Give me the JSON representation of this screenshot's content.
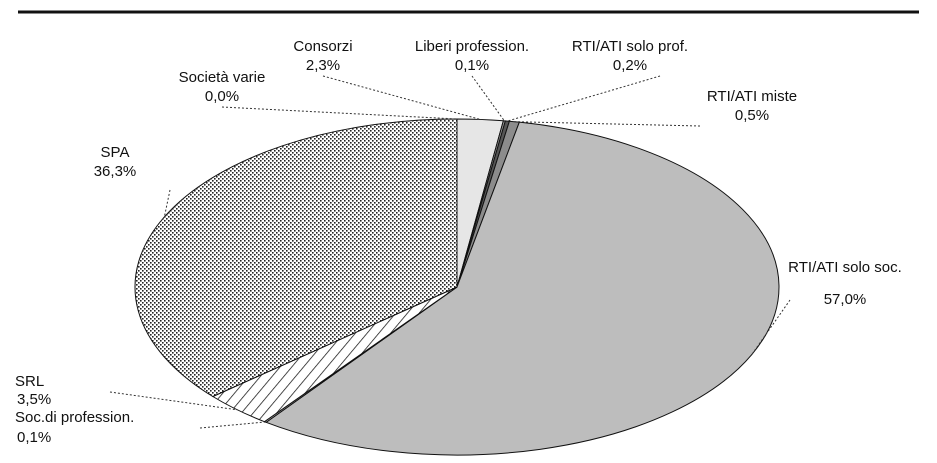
{
  "chart_data": {
    "type": "pie",
    "categories": [
      "Consorzi",
      "Liberi profession.",
      "RTI/ATI solo prof.",
      "RTI/ATI miste",
      "RTI/ATI solo soc.",
      "Soc.di profession.",
      "SRL",
      "SPA",
      "Società varie"
    ],
    "values": [
      2.3,
      0.1,
      0.2,
      0.5,
      57.0,
      0.1,
      3.5,
      36.3,
      0.0
    ],
    "value_labels": [
      "2,3%",
      "0,1%",
      "0,2%",
      "0,5%",
      "57,0%",
      "0,1%",
      "3,5%",
      "36,3%",
      "0,0%"
    ],
    "colors": [
      "#e6e6e6",
      "#9a9a9a",
      "#555555",
      "#8c8c8c",
      "#bdbdbd",
      "#ffffff",
      "#ffffff",
      "#ffffff",
      "#ffffff"
    ],
    "patterns": [
      "solid",
      "solid",
      "solid",
      "solid",
      "solid",
      "solid",
      "hatch",
      "dots",
      "solid"
    ]
  }
}
